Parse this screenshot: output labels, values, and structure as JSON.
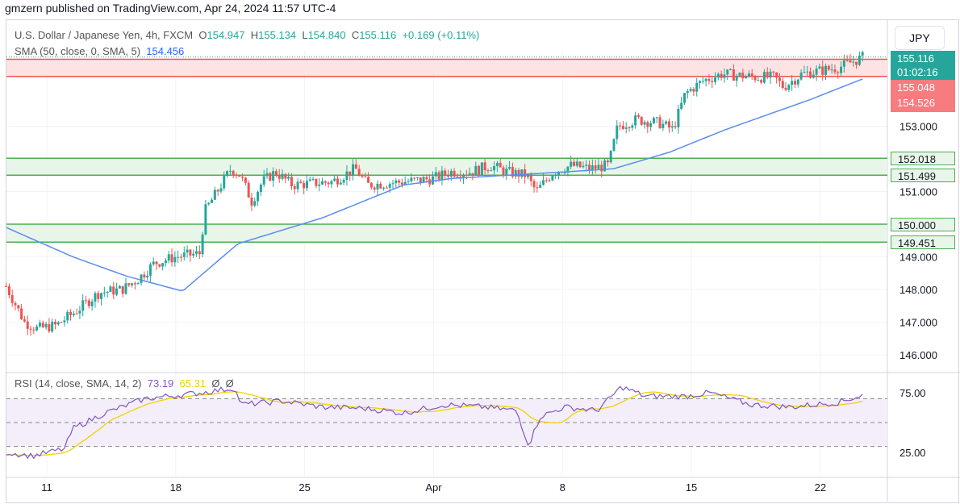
{
  "publisher_line": "gmzern published on TradingView.com, Apr 24, 2024 11:57 UTC-4",
  "legend": {
    "symbol": "U.S. Dollar / Japanese Yen, 4h, FXCM",
    "o_label": "O",
    "o": "154.947",
    "h_label": "H",
    "h": "155.134",
    "l_label": "L",
    "l": "154.840",
    "c_label": "C",
    "c": "155.116",
    "change": "+0.169 (+0.11%)",
    "sma_label": "SMA (50, close, 0, SMA, 5)",
    "sma_value": "154.456"
  },
  "rsi_legend": {
    "label": "RSI (14, close, SMA, 14, 2)",
    "rsi": "73.19",
    "rsi_ma": "65.31",
    "v3": "Ø",
    "v4": "Ø"
  },
  "currency_button": "JPY",
  "price_labels": {
    "last": "155.116",
    "countdown": "01:02:16",
    "zone_top": "155.048",
    "zone_bottom": "154.526",
    "g1_top": "152.018",
    "g1_bottom": "151.499",
    "g2_top": "150.000",
    "g2_bottom": "149.451"
  },
  "colors": {
    "up": "#26a69a",
    "down": "#ef5350",
    "sma": "#5b8def",
    "rsi": "#7e57c2",
    "rsi_ma": "#f2d200",
    "red_zone": "#f7a1a1",
    "green_zone": "#7cc97c"
  },
  "chart_data": {
    "type": "candlestick",
    "price_axis": {
      "ticks": [
        146,
        147,
        148,
        149,
        151,
        153
      ],
      "range": [
        145.5,
        155.6
      ]
    },
    "x_ticks": [
      "11",
      "18",
      "25",
      "Apr",
      "8",
      "15",
      "22"
    ],
    "zones": [
      {
        "top": 155.048,
        "bottom": 154.526,
        "color": "red"
      },
      {
        "top": 152.018,
        "bottom": 151.499,
        "color": "green"
      },
      {
        "top": 150.0,
        "bottom": 149.451,
        "color": "green"
      }
    ],
    "approx_closes": [
      [
        "2024-03-08T19:00",
        148.1
      ],
      [
        "2024-03-09T19:00",
        147.0
      ],
      [
        "2024-03-10T12:00",
        146.8
      ],
      [
        "2024-03-11T12:00",
        146.9
      ],
      [
        "2024-03-12T12:00",
        147.3
      ],
      [
        "2024-03-13T20:00",
        147.9
      ],
      [
        "2024-03-15T02:00",
        148.0
      ],
      [
        "2024-03-15T22:00",
        148.3
      ],
      [
        "2024-03-16T20:00",
        148.8
      ],
      [
        "2024-03-18T00:00",
        149.0
      ],
      [
        "2024-03-19T07:00",
        149.1
      ],
      [
        "2024-03-19T14:00",
        150.4
      ],
      [
        "2024-03-20T06:00",
        151.0
      ],
      [
        "2024-03-21T00:00",
        151.7
      ],
      [
        "2024-03-21T12:00",
        151.5
      ],
      [
        "2024-03-22T03:00",
        150.7
      ],
      [
        "2024-03-22T17:00",
        151.3
      ],
      [
        "2024-03-23T10:00",
        151.6
      ],
      [
        "2024-03-24T08:00",
        151.2
      ],
      [
        "2024-03-26T12:00",
        151.3
      ],
      [
        "2024-03-27T18:00",
        151.7
      ],
      [
        "2024-03-28T10:00",
        151.2
      ],
      [
        "2024-03-30T10:00",
        151.3
      ],
      [
        "2024-04-01T00:00",
        151.4
      ],
      [
        "2024-04-01T22:00",
        151.6
      ],
      [
        "2024-04-03T00:00",
        151.6
      ],
      [
        "2024-04-04T02:00",
        151.8
      ],
      [
        "2024-04-05T00:00",
        151.6
      ],
      [
        "2024-04-06T00:00",
        151.5
      ],
      [
        "2024-04-06T14:00",
        151.0
      ],
      [
        "2024-04-07T12:00",
        151.6
      ],
      [
        "2024-04-08T12:00",
        151.8
      ],
      [
        "2024-04-09T12:00",
        151.7
      ],
      [
        "2024-04-10T12:00",
        151.8
      ],
      [
        "2024-04-11T00:00",
        153.0
      ],
      [
        "2024-04-12T00:00",
        153.2
      ],
      [
        "2024-04-13T06:00",
        153.1
      ],
      [
        "2024-04-14T00:00",
        152.9
      ],
      [
        "2024-04-14T16:00",
        154.0
      ],
      [
        "2024-04-15T16:00",
        154.4
      ],
      [
        "2024-04-16T16:00",
        154.6
      ],
      [
        "2024-04-18T12:00",
        154.5
      ],
      [
        "2024-04-19T12:00",
        154.5
      ],
      [
        "2024-04-20T00:00",
        154.2
      ],
      [
        "2024-04-21T00:00",
        154.6
      ],
      [
        "2024-04-23T00:00",
        154.8
      ],
      [
        "2024-04-24T08:00",
        155.116
      ]
    ],
    "sma50_approx": [
      [
        "2024-03-08T19:00",
        149.9
      ],
      [
        "2024-03-12T10:00",
        149.0
      ],
      [
        "2024-03-15T09:00",
        148.4
      ],
      [
        "2024-03-18T09:00",
        147.95
      ],
      [
        "2024-03-21T09:00",
        149.4
      ],
      [
        "2024-03-26T00:00",
        150.2
      ],
      [
        "2024-03-30T09:00",
        151.2
      ],
      [
        "2024-04-02T00:00",
        151.4
      ],
      [
        "2024-04-08T03:00",
        151.6
      ],
      [
        "2024-04-10T19:00",
        151.7
      ],
      [
        "2024-04-13T19:00",
        152.2
      ],
      [
        "2024-04-16T21:00",
        152.9
      ],
      [
        "2024-04-21T09:00",
        153.8
      ],
      [
        "2024-04-24T08:00",
        154.456
      ]
    ],
    "rsi": {
      "ticks": [
        25,
        75
      ],
      "levels": [
        70,
        50,
        30
      ],
      "points": [
        [
          "2024-03-08T19:00",
          25
        ],
        [
          "2024-03-10T05:00",
          22
        ],
        [
          "2024-03-11T23:00",
          28
        ],
        [
          "2024-03-12T10:00",
          45
        ],
        [
          "2024-03-14T04:00",
          58
        ],
        [
          "2024-03-16T08:00",
          70
        ],
        [
          "2024-03-19T10:00",
          75
        ],
        [
          "2024-03-21T04:00",
          79
        ],
        [
          "2024-03-21T14:00",
          65
        ],
        [
          "2024-03-23T19:00",
          68
        ],
        [
          "2024-03-25T23:00",
          63
        ],
        [
          "2024-03-28T04:00",
          62
        ],
        [
          "2024-03-30T09:00",
          58
        ],
        [
          "2024-04-01T13:00",
          65
        ],
        [
          "2024-04-03T18:00",
          63
        ],
        [
          "2024-04-05T12:00",
          60
        ],
        [
          "2024-04-06T04:00",
          31
        ],
        [
          "2024-04-06T19:00",
          55
        ],
        [
          "2024-04-08T03:00",
          63
        ],
        [
          "2024-04-09T21:00",
          60
        ],
        [
          "2024-04-11T05:00",
          80
        ],
        [
          "2024-04-12T12:00",
          72
        ],
        [
          "2024-04-14T17:00",
          72
        ],
        [
          "2024-04-16T00:00",
          75
        ],
        [
          "2024-04-18T05:00",
          65
        ],
        [
          "2024-04-20T09:00",
          63
        ],
        [
          "2024-04-23T00:00",
          67
        ],
        [
          "2024-04-24T08:00",
          73.19
        ]
      ]
    }
  }
}
